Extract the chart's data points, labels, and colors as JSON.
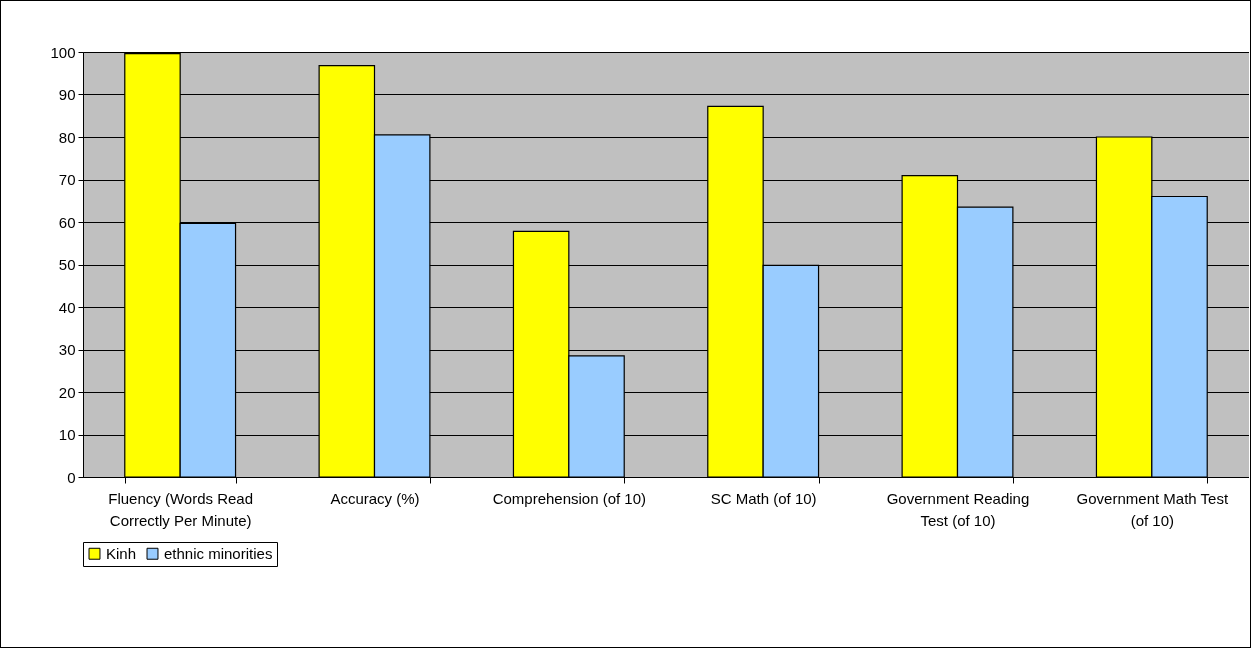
{
  "chart_data": {
    "type": "bar",
    "categories": [
      "Fluency (Words Read Correctly Per Minute)",
      "Accuracy (%)",
      "Comprehension (of 10)",
      "SC Math (of 10)",
      "Government Reading Test (of 10)",
      "Government Math Test (of 10)"
    ],
    "series": [
      {
        "name": "Kinh",
        "color": "#ffff00",
        "values": [
          99.6,
          96.8,
          57.8,
          87.2,
          70.9,
          80.0
        ]
      },
      {
        "name": "ethnic minorities",
        "color": "#99ccff",
        "values": [
          59.7,
          80.5,
          28.5,
          49.8,
          63.5,
          66.0
        ]
      }
    ],
    "ylim": [
      0,
      100
    ],
    "yticks": [
      0,
      10,
      20,
      30,
      40,
      50,
      60,
      70,
      80,
      90,
      100
    ],
    "grid": "y",
    "legend": "bottom"
  }
}
